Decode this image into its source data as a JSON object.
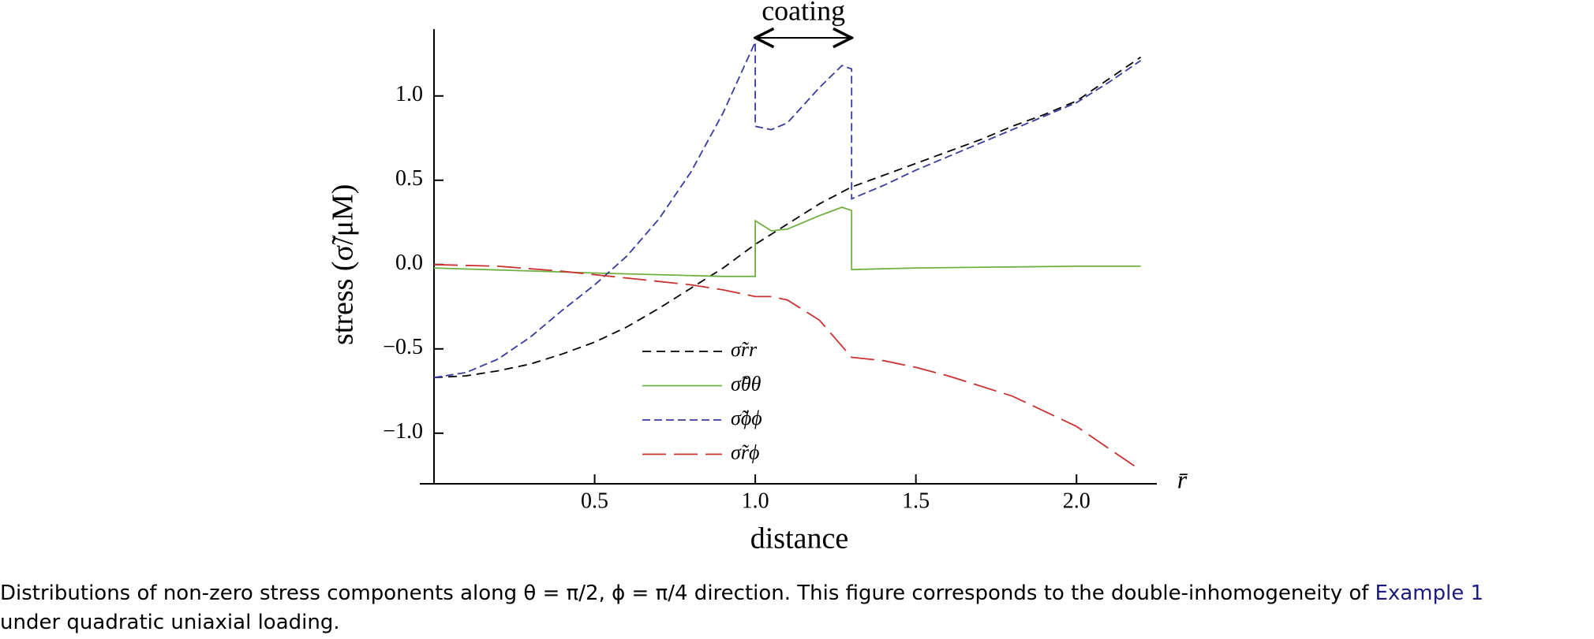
{
  "chart_data": {
    "type": "line",
    "ylabel": "stress (σ̃/μM)",
    "xlabel": "distance",
    "xaxis_end_label": "r̄",
    "annotation": {
      "text": "coating",
      "x": [
        1.0,
        1.3
      ]
    },
    "xlim": [
      0,
      2.25
    ],
    "ylim": [
      -1.3,
      1.34
    ],
    "xticks": [
      0.5,
      {
        "value": 1.0,
        "label": "1.0"
      },
      1.5,
      {
        "value": 2.0,
        "label": "2.0"
      }
    ],
    "yticks": [
      {
        "value": -1.0,
        "label": "−1.0"
      },
      {
        "value": -0.5,
        "label": "−0.5"
      },
      {
        "value": 0.0,
        "label": "0.0"
      },
      {
        "value": 0.5,
        "label": "0.5"
      },
      {
        "value": 1.0,
        "label": "1.0"
      }
    ],
    "grid": false,
    "series": [
      {
        "name": "σ̃rr",
        "color": "#000000",
        "dash": "dashed",
        "x": [
          0,
          0.1,
          0.2,
          0.3,
          0.4,
          0.5,
          0.6,
          0.7,
          0.8,
          0.9,
          1.0,
          1.1,
          1.2,
          1.3,
          1.4,
          1.5,
          1.6,
          1.7,
          1.8,
          1.9,
          2.0,
          2.1,
          2.2
        ],
        "values": [
          -0.67,
          -0.66,
          -0.63,
          -0.59,
          -0.53,
          -0.46,
          -0.37,
          -0.26,
          -0.14,
          -0.02,
          0.12,
          0.24,
          0.36,
          0.46,
          0.53,
          0.6,
          0.67,
          0.74,
          0.82,
          0.89,
          0.97,
          1.1,
          1.23
        ]
      },
      {
        "name": "σ̃θθ",
        "color": "#70b043",
        "dash": "solid",
        "x": [
          0,
          0.5,
          0.9,
          1.0,
          1.0,
          1.05,
          1.1,
          1.2,
          1.27,
          1.3,
          1.3,
          1.5,
          2.0,
          2.2
        ],
        "values": [
          -0.02,
          -0.05,
          -0.07,
          -0.07,
          0.26,
          0.2,
          0.21,
          0.29,
          0.34,
          0.32,
          -0.03,
          -0.02,
          -0.01,
          -0.01
        ]
      },
      {
        "name": "σ̃ϕϕ",
        "color": "#3a3a9e",
        "dash": "short",
        "x": [
          0,
          0.1,
          0.2,
          0.3,
          0.4,
          0.5,
          0.6,
          0.7,
          0.8,
          0.9,
          1.0,
          1.0,
          1.05,
          1.1,
          1.2,
          1.27,
          1.3,
          1.3,
          1.4,
          1.5,
          1.6,
          1.7,
          1.8,
          1.9,
          2.0,
          2.1,
          2.2
        ],
        "values": [
          -0.67,
          -0.64,
          -0.56,
          -0.43,
          -0.27,
          -0.12,
          0.05,
          0.27,
          0.55,
          0.9,
          1.32,
          0.82,
          0.8,
          0.84,
          1.05,
          1.18,
          1.16,
          0.39,
          0.47,
          0.56,
          0.64,
          0.72,
          0.8,
          0.88,
          0.96,
          1.08,
          1.21
        ]
      },
      {
        "name": "σ̃rϕ",
        "color": "#c83232",
        "dash": "long",
        "x": [
          0,
          0.2,
          0.4,
          0.6,
          0.8,
          0.9,
          1.0,
          1.05,
          1.1,
          1.2,
          1.3,
          1.4,
          1.5,
          1.6,
          1.8,
          2.0,
          2.2
        ],
        "values": [
          0.0,
          -0.01,
          -0.04,
          -0.08,
          -0.12,
          -0.15,
          -0.19,
          -0.19,
          -0.21,
          -0.33,
          -0.55,
          -0.57,
          -0.61,
          -0.66,
          -0.78,
          -0.96,
          -1.22
        ]
      }
    ]
  },
  "caption": {
    "line1": "Distributions of non-zero stress components along θ = π/2, ϕ = π/4 direction. This figure corresponds to the double-inhomogeneity of",
    "link": "Example 1",
    "line2": "under quadratic uniaxial loading."
  }
}
